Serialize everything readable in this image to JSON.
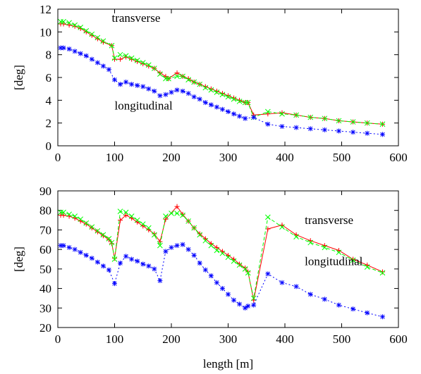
{
  "chart_data": [
    {
      "type": "line",
      "ylabel": "[deg]",
      "xlim": [
        0,
        600
      ],
      "ylim": [
        0,
        12
      ],
      "xticks": [
        0,
        100,
        200,
        300,
        400,
        500,
        600
      ],
      "yticks": [
        0,
        2,
        4,
        6,
        8,
        10,
        12
      ],
      "annotations": [
        {
          "text": "transverse",
          "x": 95,
          "y": 10.9
        },
        {
          "text": "longitudinal",
          "x": 100,
          "y": 3.2
        }
      ],
      "series": [
        {
          "color": "#ff0000",
          "marker": "plus",
          "dash": "solid",
          "x": [
            5,
            10,
            20,
            30,
            40,
            50,
            60,
            70,
            80,
            95,
            100,
            110,
            120,
            130,
            140,
            150,
            160,
            170,
            180,
            190,
            195,
            210,
            220,
            230,
            240,
            250,
            260,
            270,
            280,
            290,
            300,
            310,
            320,
            330,
            335,
            345,
            370,
            395,
            420,
            445,
            470,
            495,
            520,
            545,
            572
          ],
          "y": [
            10.7,
            10.7,
            10.6,
            10.5,
            10.3,
            10.0,
            9.7,
            9.4,
            9.1,
            8.8,
            7.6,
            7.6,
            7.8,
            7.6,
            7.4,
            7.2,
            7.0,
            6.8,
            6.4,
            6.1,
            5.9,
            6.4,
            6.1,
            5.9,
            5.6,
            5.4,
            5.2,
            5.0,
            4.8,
            4.6,
            4.4,
            4.2,
            4.0,
            3.8,
            3.8,
            2.7,
            2.8,
            2.9,
            2.7,
            2.5,
            2.4,
            2.2,
            2.1,
            2.0,
            1.9
          ]
        },
        {
          "color": "#00ff00",
          "marker": "cross",
          "dash": "dashed",
          "x": [
            5,
            10,
            20,
            30,
            40,
            50,
            60,
            70,
            80,
            95,
            100,
            110,
            120,
            130,
            140,
            150,
            160,
            170,
            180,
            190,
            195,
            210,
            220,
            230,
            240,
            250,
            260,
            270,
            280,
            290,
            300,
            310,
            320,
            330,
            335,
            345,
            370,
            395,
            420,
            445,
            470,
            495,
            520,
            545,
            572
          ],
          "y": [
            10.9,
            10.9,
            10.8,
            10.6,
            10.4,
            10.1,
            9.8,
            9.5,
            9.2,
            8.8,
            7.7,
            8.0,
            7.9,
            7.7,
            7.5,
            7.3,
            7.1,
            6.8,
            6.3,
            5.9,
            5.9,
            6.1,
            6.1,
            5.8,
            5.6,
            5.4,
            5.1,
            4.9,
            4.7,
            4.5,
            4.3,
            4.1,
            3.9,
            3.8,
            3.8,
            2.5,
            3.0,
            2.8,
            2.7,
            2.5,
            2.4,
            2.2,
            2.1,
            2.0,
            1.9
          ]
        },
        {
          "color": "#0000ff",
          "marker": "star",
          "dash": "dotted",
          "x": [
            5,
            10,
            20,
            30,
            40,
            50,
            60,
            70,
            80,
            90,
            100,
            110,
            120,
            130,
            140,
            150,
            160,
            170,
            180,
            190,
            200,
            210,
            220,
            230,
            240,
            250,
            260,
            270,
            280,
            290,
            300,
            310,
            320,
            330,
            345,
            370,
            395,
            420,
            445,
            470,
            495,
            520,
            545,
            572
          ],
          "y": [
            8.6,
            8.6,
            8.5,
            8.3,
            8.1,
            7.9,
            7.6,
            7.3,
            7.0,
            6.7,
            5.8,
            5.4,
            5.6,
            5.4,
            5.3,
            5.2,
            5.0,
            4.8,
            4.4,
            4.5,
            4.7,
            4.9,
            4.8,
            4.6,
            4.3,
            4.1,
            3.8,
            3.6,
            3.4,
            3.2,
            3.0,
            2.8,
            2.6,
            2.4,
            2.5,
            1.9,
            1.7,
            1.6,
            1.5,
            1.4,
            1.3,
            1.2,
            1.1,
            1.0
          ]
        }
      ]
    },
    {
      "type": "line",
      "xlabel": "length [m]",
      "ylabel": "[deg]",
      "xlim": [
        0,
        600
      ],
      "ylim": [
        20,
        90
      ],
      "xticks": [
        0,
        100,
        200,
        300,
        400,
        500,
        600
      ],
      "yticks": [
        20,
        30,
        40,
        50,
        60,
        70,
        80,
        90
      ],
      "annotations": [
        {
          "text": "transverse",
          "x": 435,
          "y": 73
        },
        {
          "text": "longitudinal",
          "x": 435,
          "y": 52
        }
      ],
      "series": [
        {
          "color": "#ff0000",
          "marker": "plus",
          "dash": "solid",
          "x": [
            5,
            10,
            20,
            30,
            40,
            50,
            60,
            70,
            80,
            90,
            95,
            100,
            110,
            120,
            130,
            140,
            150,
            160,
            170,
            180,
            190,
            210,
            220,
            230,
            240,
            250,
            260,
            270,
            280,
            290,
            300,
            310,
            320,
            330,
            335,
            345,
            370,
            395,
            420,
            445,
            470,
            495,
            520,
            545,
            572
          ],
          "y": [
            77.5,
            77.5,
            77.0,
            76.0,
            74.5,
            73.0,
            71.0,
            69.0,
            67.0,
            65.0,
            63.0,
            55.5,
            75.0,
            77.5,
            76.0,
            74.0,
            72.0,
            70.0,
            68.0,
            64.0,
            75.5,
            82.0,
            78.0,
            74.5,
            71.0,
            68.0,
            65.5,
            63.0,
            61.0,
            59.0,
            57.0,
            55.0,
            52.5,
            50.5,
            48.5,
            34.0,
            70.5,
            72.5,
            67.5,
            64.5,
            62.0,
            59.5,
            55.0,
            52.0,
            48.5
          ]
        },
        {
          "color": "#00ff00",
          "marker": "cross",
          "dash": "dashed",
          "x": [
            5,
            10,
            20,
            30,
            40,
            50,
            60,
            70,
            80,
            90,
            95,
            100,
            110,
            120,
            130,
            140,
            150,
            160,
            170,
            180,
            190,
            200,
            210,
            220,
            230,
            240,
            250,
            260,
            270,
            280,
            290,
            300,
            310,
            320,
            330,
            335,
            345,
            370,
            395,
            420,
            445,
            470,
            495,
            520,
            545,
            572
          ],
          "y": [
            79.0,
            79.0,
            78.0,
            77.0,
            75.5,
            73.5,
            71.5,
            69.5,
            67.5,
            65.5,
            63.5,
            55.0,
            79.5,
            79.0,
            77.0,
            75.0,
            73.0,
            71.0,
            67.5,
            62.0,
            77.0,
            78.5,
            78.5,
            77.5,
            74.5,
            71.0,
            67.5,
            64.5,
            62.0,
            59.5,
            58.0,
            56.0,
            54.0,
            52.0,
            50.0,
            48.0,
            35.0,
            76.5,
            71.5,
            66.5,
            63.5,
            61.0,
            58.5,
            54.5,
            51.0,
            48.0
          ]
        },
        {
          "color": "#0000ff",
          "marker": "star",
          "dash": "dotted",
          "x": [
            5,
            10,
            20,
            30,
            40,
            50,
            60,
            70,
            80,
            90,
            100,
            110,
            120,
            130,
            140,
            150,
            160,
            170,
            180,
            190,
            200,
            210,
            220,
            230,
            240,
            250,
            260,
            270,
            280,
            290,
            300,
            310,
            320,
            330,
            335,
            345,
            370,
            395,
            420,
            445,
            470,
            495,
            520,
            545,
            572
          ],
          "y": [
            62.0,
            62.0,
            61.0,
            60.0,
            58.5,
            57.0,
            55.5,
            53.5,
            51.5,
            49.5,
            42.5,
            53.0,
            56.5,
            55.0,
            54.0,
            52.5,
            51.5,
            50.0,
            44.0,
            59.0,
            61.0,
            62.0,
            62.5,
            60.0,
            57.0,
            53.0,
            49.5,
            46.5,
            43.0,
            40.0,
            37.0,
            34.0,
            32.0,
            30.0,
            31.0,
            31.5,
            47.5,
            43.0,
            41.0,
            37.0,
            34.5,
            31.5,
            29.5,
            27.5,
            25.5
          ]
        }
      ]
    }
  ]
}
